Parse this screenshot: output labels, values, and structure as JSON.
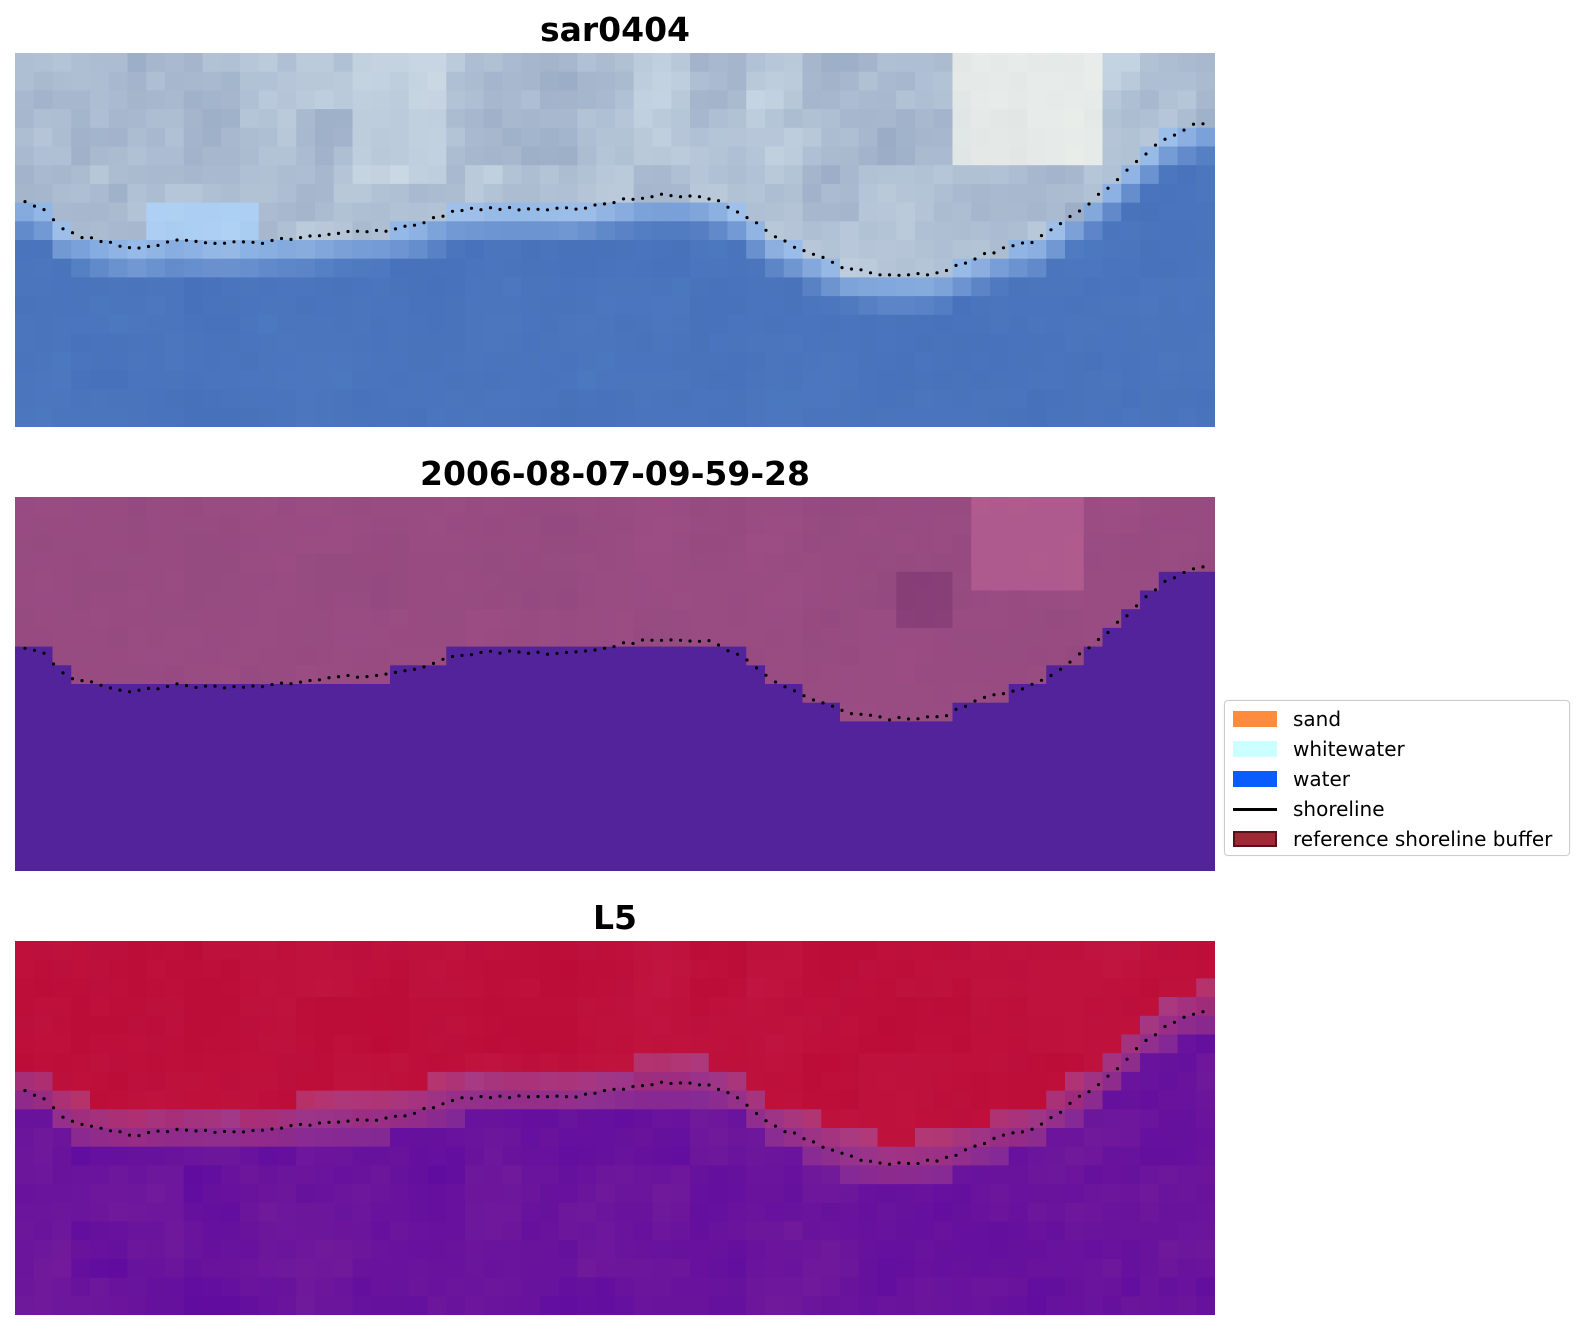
{
  "panels": [
    {
      "title": "sar0404",
      "style": "rgb"
    },
    {
      "title": "2006-08-07-09-59-28",
      "style": "class"
    },
    {
      "title": "L5",
      "style": "index"
    }
  ],
  "legend": {
    "items": [
      {
        "label": "sand",
        "color": "#ff8c3c",
        "kind": "patch"
      },
      {
        "label": "whitewater",
        "color": "#ccffff",
        "kind": "patch"
      },
      {
        "label": "water",
        "color": "#0a5cff",
        "kind": "patch"
      },
      {
        "label": "shoreline",
        "color": "#000000",
        "kind": "line"
      },
      {
        "label": "reference shoreline buffer",
        "color": "#9b2a35",
        "kind": "patch-outlined",
        "edge": "#5a1018"
      }
    ]
  },
  "colors": {
    "water_class": "#53239b",
    "land_class": "#93497f",
    "index_high": "#bb0a36",
    "index_low": "#5e0aa0"
  }
}
